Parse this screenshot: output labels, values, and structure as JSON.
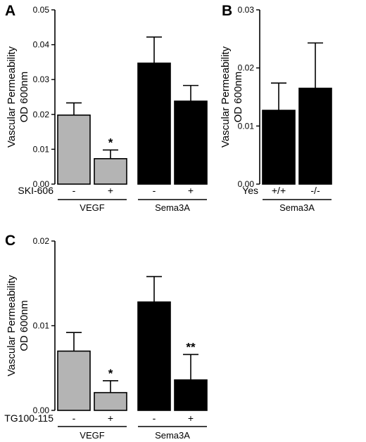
{
  "chart_data": [
    {
      "panel": "A",
      "type": "bar",
      "ylabel_lines": [
        "Vascular Permeability",
        "OD 600nm"
      ],
      "ylim": [
        0,
        0.05
      ],
      "yticks": [
        "0.00",
        "0.01",
        "0.02",
        "0.03",
        "0.04",
        "0.05"
      ],
      "row_label": "SKI-606",
      "categories": [
        "-",
        "+",
        "-",
        "+"
      ],
      "values": [
        0.0198,
        0.0073,
        0.0347,
        0.0238
      ],
      "errors": [
        0.0035,
        0.0025,
        0.0075,
        0.0045
      ],
      "colors": [
        "#b4b4b4",
        "#b4b4b4",
        "#000000",
        "#000000"
      ],
      "annotations": [
        "",
        "*",
        "",
        ""
      ],
      "groups": [
        {
          "label": "VEGF",
          "members": [
            0,
            1
          ]
        },
        {
          "label": "Sema3A",
          "members": [
            2,
            3
          ]
        }
      ]
    },
    {
      "panel": "B",
      "type": "bar",
      "ylabel_lines": [
        "Vascular Permeability",
        "OD 600nm"
      ],
      "ylim": [
        0,
        0.03
      ],
      "yticks": [
        "0.00",
        "0.01",
        "0.02",
        "0.03"
      ],
      "row_label": "Yes",
      "categories": [
        "+/+",
        "-/-"
      ],
      "values": [
        0.0127,
        0.0165
      ],
      "errors": [
        0.0047,
        0.0078
      ],
      "colors": [
        "#000000",
        "#000000"
      ],
      "annotations": [
        "",
        ""
      ],
      "groups": [
        {
          "label": "Sema3A",
          "members": [
            0,
            1
          ]
        }
      ]
    },
    {
      "panel": "C",
      "type": "bar",
      "ylabel_lines": [
        "Vascular Permeability",
        "OD 600nm"
      ],
      "ylim": [
        0,
        0.02
      ],
      "yticks": [
        "0.00",
        "0.01",
        "0.02"
      ],
      "row_label": "TG100-115",
      "categories": [
        "-",
        "+",
        "-",
        "+"
      ],
      "values": [
        0.007,
        0.0021,
        0.0128,
        0.0036
      ],
      "errors": [
        0.0022,
        0.0014,
        0.003,
        0.003
      ],
      "colors": [
        "#b4b4b4",
        "#b4b4b4",
        "#000000",
        "#000000"
      ],
      "annotations": [
        "",
        "*",
        "",
        "**"
      ],
      "groups": [
        {
          "label": "VEGF",
          "members": [
            0,
            1
          ]
        },
        {
          "label": "Sema3A",
          "members": [
            2,
            3
          ]
        }
      ]
    }
  ]
}
